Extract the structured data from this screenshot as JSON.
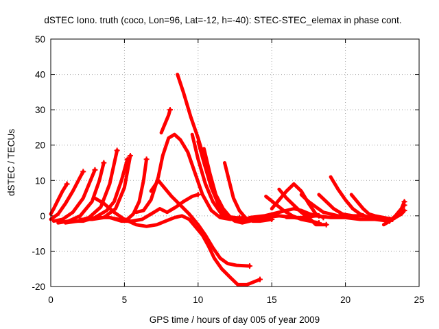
{
  "chart_data": {
    "type": "line",
    "title": "dSTEC Iono. truth (coco, Lon=96, Lat=-12, h=-40): STEC-STEC_elemax in phase cont.",
    "xlabel": "GPS time / hours of day 005 of year 2009",
    "ylabel": "dSTEC  / TECUs",
    "xlim": [
      0,
      25
    ],
    "ylim": [
      -20,
      50
    ],
    "xticks": [
      0,
      5,
      10,
      15,
      20,
      25
    ],
    "yticks": [
      -20,
      -10,
      0,
      10,
      20,
      30,
      40,
      50
    ],
    "grid": true,
    "legend": "none",
    "series_color": "#ff0000",
    "series": [
      {
        "x": [
          0.0,
          0.2,
          0.5,
          0.8,
          1.1
        ],
        "y": [
          0.5,
          2.0,
          4.5,
          7.0,
          9.0
        ]
      },
      {
        "x": [
          0.0,
          0.5,
          1.0,
          1.5,
          2.0,
          2.2
        ],
        "y": [
          -1.0,
          0.5,
          3.5,
          7.0,
          11.0,
          12.5
        ]
      },
      {
        "x": [
          0.2,
          0.8,
          1.5,
          2.2,
          2.8,
          3.0
        ],
        "y": [
          -1.5,
          -1.0,
          1.0,
          5.0,
          11.0,
          13.0
        ]
      },
      {
        "x": [
          0.5,
          1.2,
          2.0,
          2.8,
          3.3,
          3.6
        ],
        "y": [
          -2.0,
          -1.5,
          0.0,
          4.0,
          10.0,
          15.0
        ]
      },
      {
        "x": [
          1.0,
          1.8,
          2.6,
          3.4,
          4.0,
          4.5
        ],
        "y": [
          -2.0,
          -1.5,
          -0.5,
          2.5,
          9.0,
          18.5
        ]
      },
      {
        "x": [
          1.5,
          2.2,
          3.0,
          3.8,
          4.3,
          4.8,
          5.2
        ],
        "y": [
          -1.5,
          -1.5,
          -0.5,
          1.5,
          4.0,
          10.0,
          16.0
        ]
      },
      {
        "x": [
          2.0,
          2.8,
          3.6,
          4.4,
          5.0,
          5.4
        ],
        "y": [
          -1.0,
          -1.0,
          -0.5,
          2.0,
          8.0,
          17.0
        ]
      },
      {
        "x": [
          4.0,
          4.6,
          5.2,
          5.6,
          6.0,
          6.3,
          6.5
        ],
        "y": [
          -0.5,
          -1.0,
          -1.0,
          0.5,
          4.0,
          10.0,
          16.0
        ]
      },
      {
        "x": [
          3.0,
          3.6,
          4.3,
          5.0,
          5.8,
          6.5,
          7.2,
          7.8,
          8.4,
          8.9,
          9.4,
          9.8,
          10.3,
          10.7,
          11.1,
          11.6,
          12.2,
          12.7,
          13.3,
          14.2
        ],
        "y": [
          5.0,
          3.5,
          1.0,
          -1.0,
          -2.5,
          -3.0,
          -2.5,
          -1.5,
          -0.5,
          0.0,
          -1.0,
          -3.0,
          -5.5,
          -8.5,
          -12.0,
          -15.0,
          -17.5,
          -19.5,
          -19.5,
          -18.0
        ]
      },
      {
        "x": [
          3.2,
          4.0,
          4.8,
          5.5,
          6.2,
          6.8,
          7.4,
          7.9,
          8.5,
          9.0,
          9.6,
          10.0
        ],
        "y": [
          -0.5,
          -0.5,
          -1.5,
          -1.5,
          -1.0,
          0.5,
          2.0,
          1.0,
          2.5,
          4.0,
          5.5,
          6.0
        ]
      },
      {
        "x": [
          6.8,
          7.3,
          7.7,
          8.2,
          8.8,
          9.4,
          10.0,
          10.5,
          11.0,
          11.5,
          12.0,
          12.6,
          13.5
        ],
        "y": [
          7.0,
          10.0,
          8.0,
          5.5,
          3.0,
          0.5,
          -2.5,
          -5.5,
          -9.0,
          -12.0,
          -13.5,
          -14.0,
          -14.2
        ]
      },
      {
        "x": [
          5.8,
          6.3,
          6.8,
          7.3,
          7.6,
          8.0,
          8.4,
          8.8,
          9.3,
          9.8,
          10.3,
          10.9,
          11.5,
          12.2,
          12.8
        ],
        "y": [
          1.0,
          1.5,
          4.5,
          11.0,
          17.0,
          22.0,
          23.0,
          21.5,
          18.0,
          12.0,
          6.0,
          1.5,
          -0.5,
          -1.0,
          -0.5
        ]
      },
      {
        "x": [
          7.5,
          7.7,
          7.9,
          8.0,
          8.1
        ],
        "y": [
          23.5,
          25.5,
          27.5,
          28.5,
          30.0
        ]
      },
      {
        "x": [
          8.6,
          9.0,
          9.5,
          10.0,
          10.5,
          11.0,
          11.5,
          12.0,
          12.5,
          13.0,
          13.5,
          14.0
        ],
        "y": [
          40.0,
          35.0,
          28.0,
          22.0,
          15.0,
          8.0,
          3.0,
          0.0,
          -1.5,
          -2.0,
          -1.5,
          -1.0
        ]
      },
      {
        "x": [
          9.6,
          10.0,
          10.5,
          11.0,
          11.5,
          12.0,
          12.5,
          13.0,
          13.5,
          14.0
        ],
        "y": [
          23.0,
          16.0,
          9.0,
          4.0,
          1.0,
          -0.5,
          -1.0,
          -0.5,
          -1.0,
          -1.0
        ]
      },
      {
        "x": [
          10.0,
          10.4,
          10.9,
          11.4,
          11.9,
          12.5,
          13.2,
          14.0
        ],
        "y": [
          21.0,
          15.0,
          8.0,
          3.0,
          0.0,
          -1.0,
          -1.0,
          -1.0
        ]
      },
      {
        "x": [
          10.4,
          10.8,
          11.2,
          11.7,
          12.2,
          12.8,
          13.5,
          14.5
        ],
        "y": [
          19.0,
          12.0,
          6.0,
          2.0,
          -0.5,
          -1.5,
          -1.0,
          -1.0
        ]
      },
      {
        "x": [
          11.8,
          12.1,
          12.4,
          12.8,
          13.2,
          13.7,
          14.2,
          15.0
        ],
        "y": [
          15.0,
          10.0,
          5.0,
          1.5,
          -0.5,
          -1.5,
          -1.5,
          -1.0
        ]
      },
      {
        "x": [
          11.5,
          12.5,
          13.5,
          14.5,
          15.5,
          16.5,
          17.5
        ],
        "y": [
          0.0,
          -0.5,
          -1.0,
          -0.5,
          0.0,
          -0.5,
          -1.0
        ]
      },
      {
        "x": [
          14.6,
          15.2,
          15.8,
          16.4,
          17.0,
          17.6,
          18.2
        ],
        "y": [
          5.5,
          3.5,
          1.5,
          0.0,
          -1.0,
          -1.5,
          -2.0
        ]
      },
      {
        "x": [
          15.0,
          15.5,
          16.0,
          16.5,
          17.0,
          17.5,
          18.0,
          18.5
        ],
        "y": [
          2.0,
          4.5,
          7.0,
          9.0,
          7.0,
          3.5,
          0.5,
          -0.5
        ]
      },
      {
        "x": [
          15.5,
          16.0,
          16.5,
          17.0,
          17.5,
          18.0,
          18.7
        ],
        "y": [
          7.5,
          5.0,
          3.0,
          1.0,
          -0.5,
          -2.5,
          -2.5
        ]
      },
      {
        "x": [
          13.5,
          14.5,
          15.5,
          16.5,
          17.0,
          17.6,
          18.2
        ],
        "y": [
          -0.5,
          0.0,
          1.0,
          2.0,
          1.5,
          0.5,
          0.0
        ]
      },
      {
        "x": [
          17.0,
          17.5,
          18.0,
          18.5,
          19.0,
          19.5,
          20.0
        ],
        "y": [
          6.0,
          4.0,
          2.5,
          1.0,
          0.5,
          0.0,
          0.0
        ]
      },
      {
        "x": [
          18.2,
          18.7,
          19.2,
          19.8,
          20.5,
          21.2
        ],
        "y": [
          6.0,
          4.0,
          2.0,
          0.5,
          0.0,
          0.0
        ]
      },
      {
        "x": [
          19.0,
          19.5,
          20.0,
          20.5,
          21.0,
          21.6,
          22.3,
          23.0
        ],
        "y": [
          11.0,
          7.5,
          4.5,
          2.0,
          0.5,
          -0.5,
          -1.0,
          -1.0
        ]
      },
      {
        "x": [
          20.4,
          20.8,
          21.2,
          21.6,
          22.0,
          22.6,
          23.2
        ],
        "y": [
          6.0,
          4.0,
          2.0,
          0.5,
          0.0,
          -0.5,
          -1.0
        ]
      },
      {
        "x": [
          16.0,
          17.0,
          18.0,
          19.0,
          20.0,
          21.0,
          22.0,
          23.0
        ],
        "y": [
          -0.5,
          -0.5,
          0.0,
          -0.5,
          -0.5,
          -1.0,
          -1.0,
          -1.5
        ]
      },
      {
        "x": [
          22.6,
          23.0,
          23.4,
          23.8,
          24.0
        ],
        "y": [
          -2.5,
          -1.5,
          0.0,
          2.0,
          4.0
        ]
      },
      {
        "x": [
          22.8,
          23.2,
          23.6,
          24.0
        ],
        "y": [
          -2.0,
          -1.0,
          1.0,
          3.0
        ]
      },
      {
        "x": [
          23.0,
          23.4,
          23.8,
          24.0
        ],
        "y": [
          -1.5,
          -0.5,
          0.5,
          1.5
        ]
      }
    ]
  }
}
